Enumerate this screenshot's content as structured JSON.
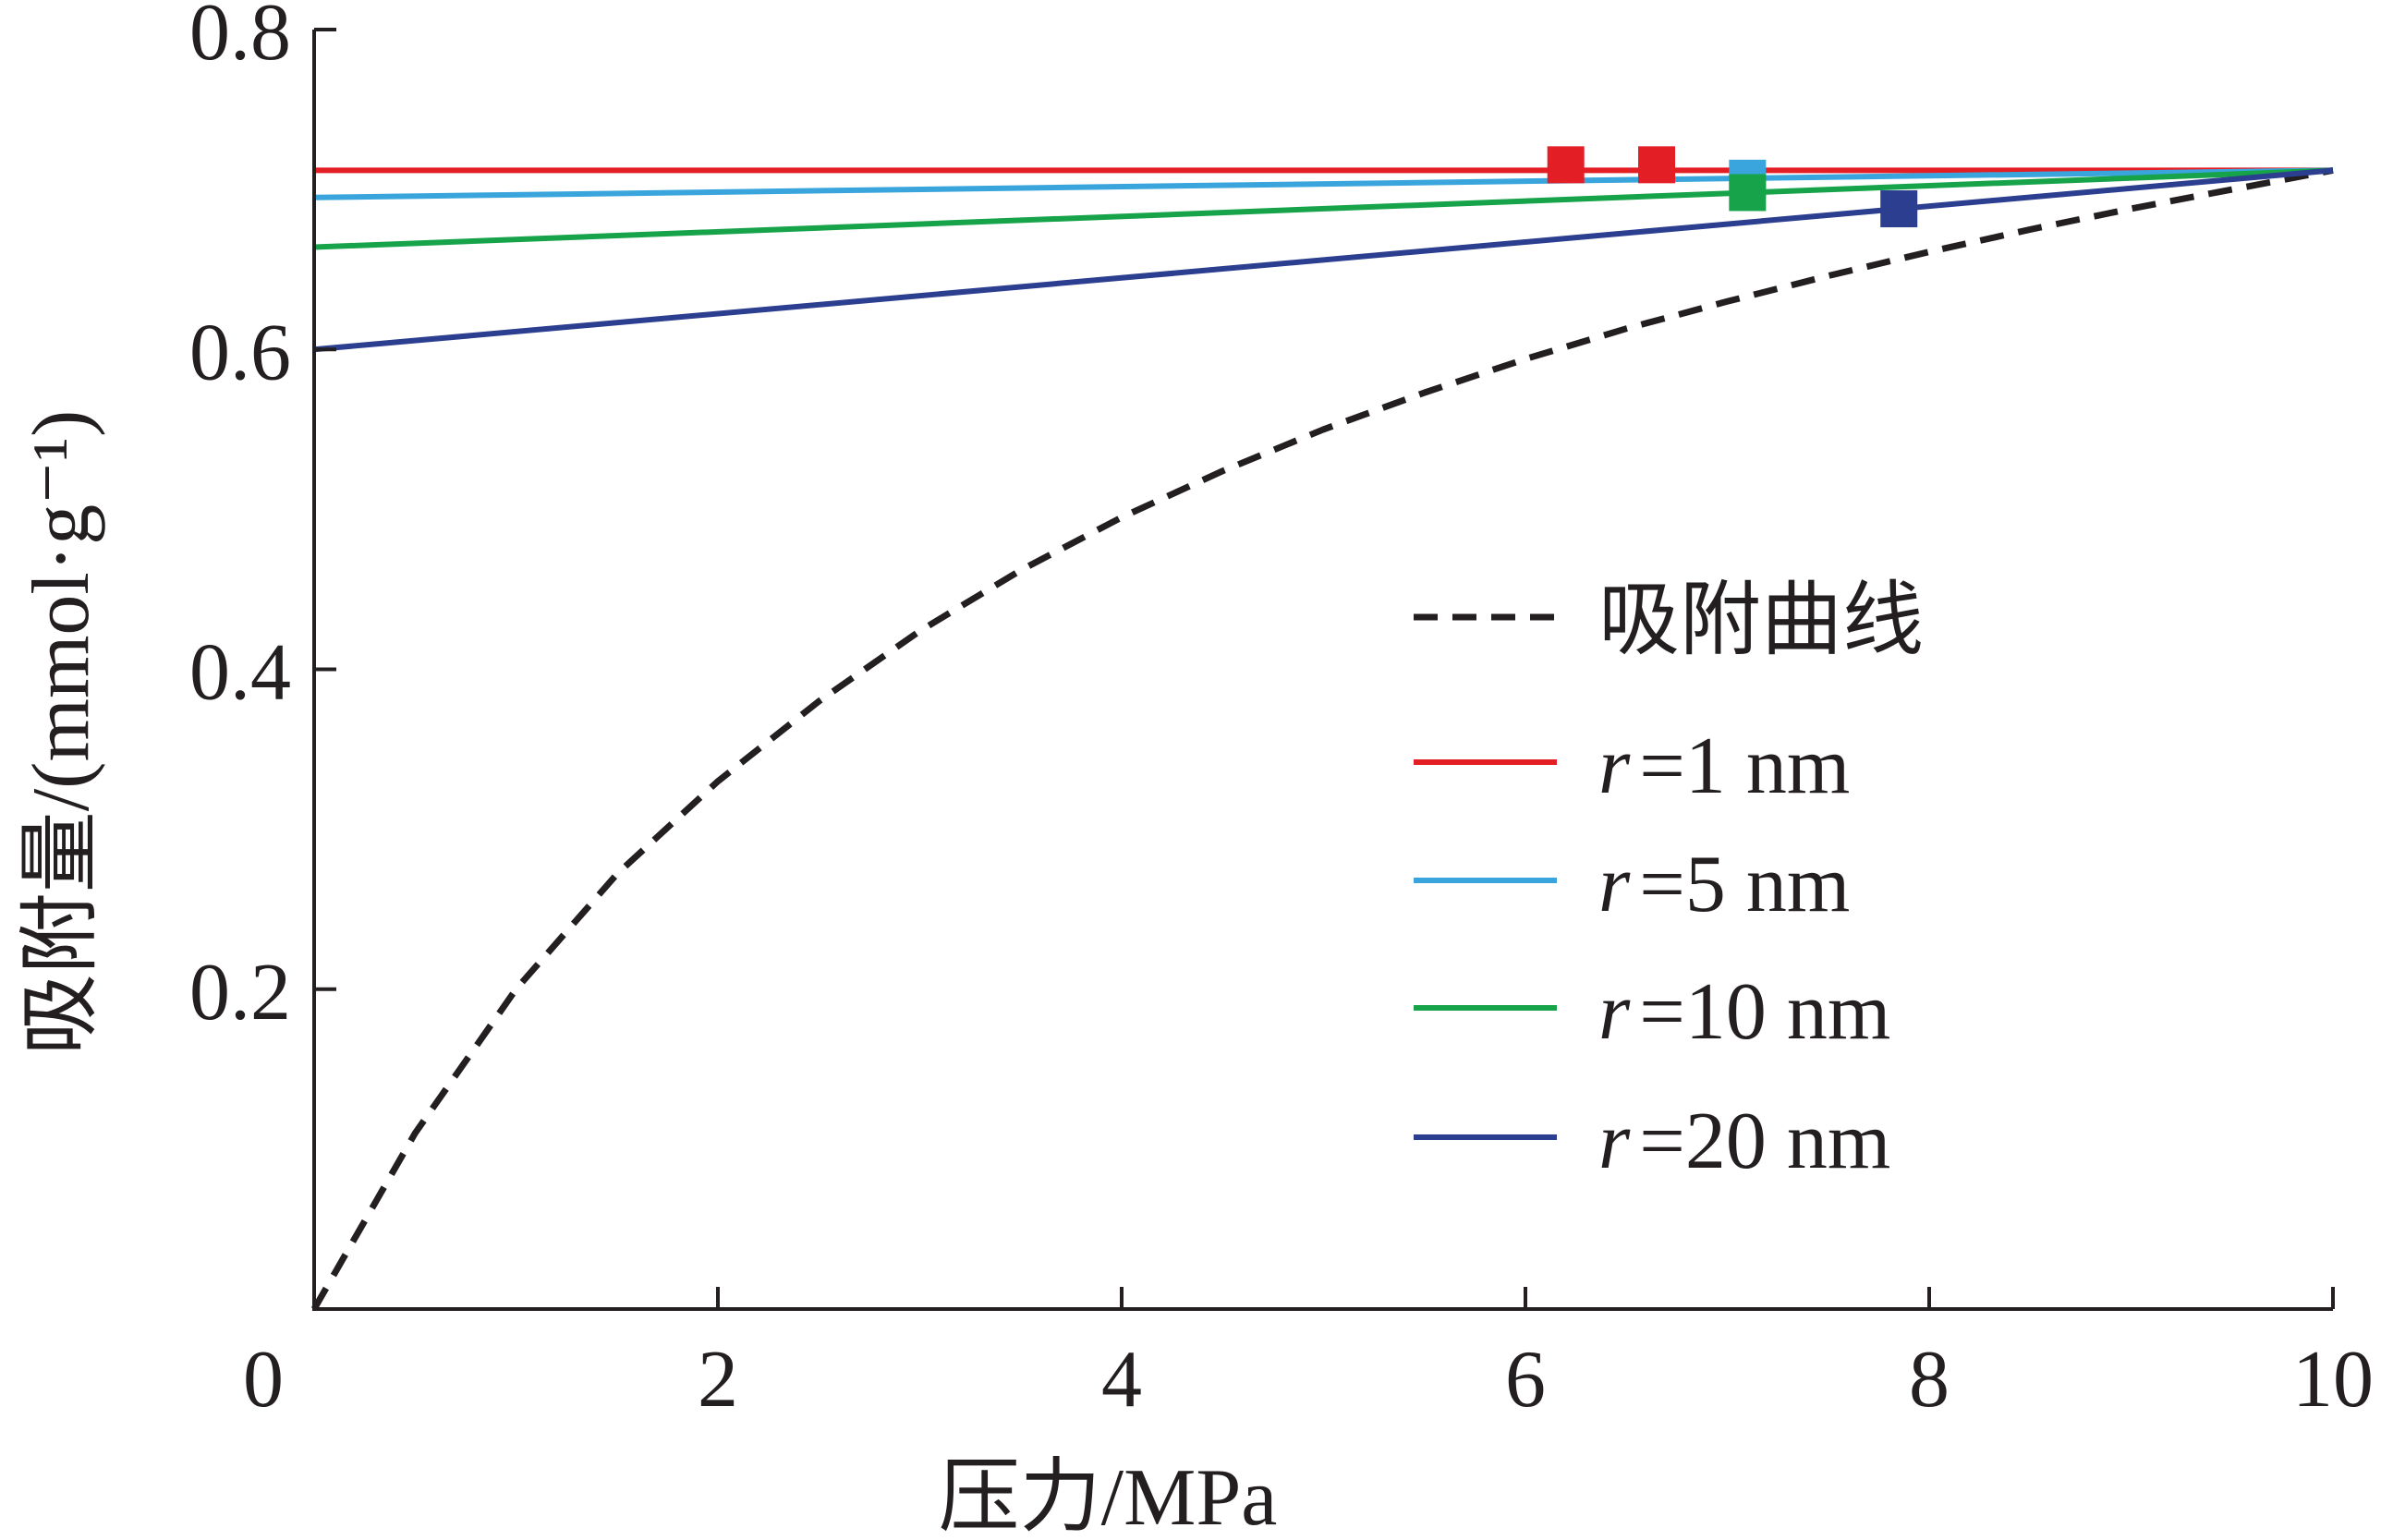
{
  "chart_data": {
    "type": "line",
    "xlabel": "压力/MPa",
    "ylabel": "吸附量/(mmol·g⁻¹)",
    "xlim": [
      0,
      10
    ],
    "ylim": [
      0,
      0.8
    ],
    "x_ticks": [
      "0",
      "2",
      "4",
      "6",
      "8",
      "10"
    ],
    "y_ticks": [
      "0.2",
      "0.4",
      "0.6",
      "0.8"
    ],
    "grid": false,
    "legend_position": "right",
    "series": [
      {
        "name": "吸附曲线",
        "color": "#231f20",
        "dash": true,
        "x": [
          0,
          0.5,
          1,
          1.5,
          2,
          2.5,
          3,
          3.5,
          4,
          4.5,
          5,
          5.5,
          6,
          6.5,
          7,
          7.5,
          8,
          8.5,
          9,
          9.5,
          10
        ],
        "y": [
          0,
          0.11,
          0.2,
          0.272,
          0.33,
          0.38,
          0.424,
          0.462,
          0.495,
          0.524,
          0.55,
          0.573,
          0.594,
          0.613,
          0.63,
          0.646,
          0.661,
          0.675,
          0.688,
          0.7,
          0.712
        ]
      },
      {
        "name_prefix": "r",
        "name_suffix": "=1 nm",
        "color": "#e31e24",
        "x": [
          0,
          10
        ],
        "y": [
          0.712,
          0.712
        ],
        "marker_x": [
          6.2,
          6.65
        ]
      },
      {
        "name_prefix": "r",
        "name_suffix": "=5 nm",
        "color": "#3aa5dc",
        "x": [
          0,
          10
        ],
        "y": [
          0.695,
          0.712
        ],
        "marker_x": [
          7.1
        ]
      },
      {
        "name_prefix": "r",
        "name_suffix": "=10 nm",
        "color": "#16a34a",
        "x": [
          0,
          10
        ],
        "y": [
          0.664,
          0.712
        ],
        "marker_x": [
          7.1
        ]
      },
      {
        "name_prefix": "r",
        "name_suffix": "=20 nm",
        "color": "#2b3e8f",
        "x": [
          0,
          10
        ],
        "y": [
          0.6,
          0.712
        ],
        "marker_x": [
          7.85
        ]
      }
    ]
  }
}
